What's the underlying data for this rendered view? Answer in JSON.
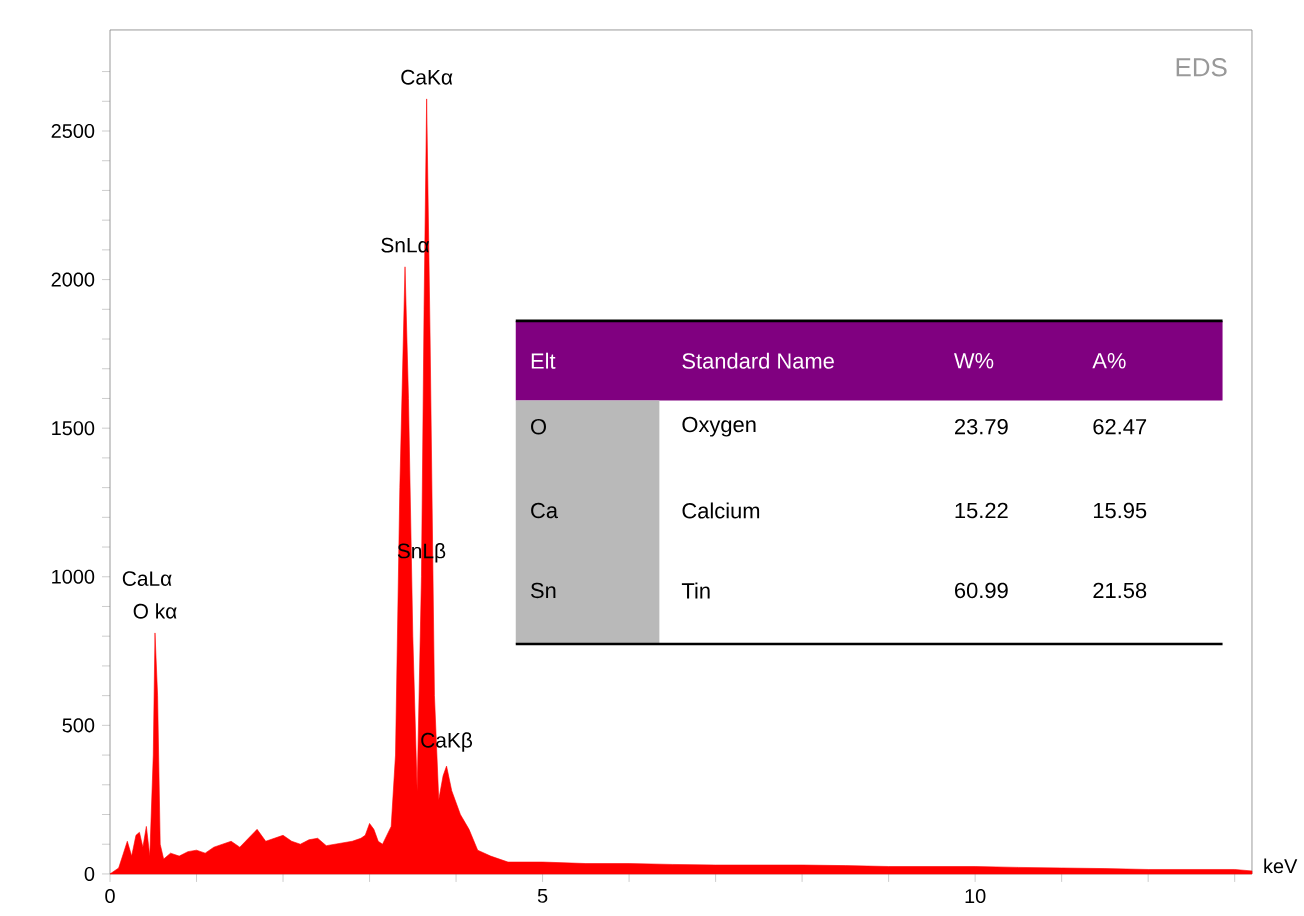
{
  "chart_data": {
    "type": "area",
    "title": "EDS",
    "xlabel": "keV",
    "color": "#ff0000",
    "x": [
      0,
      0.1,
      0.2,
      0.25,
      0.3,
      0.34,
      0.38,
      0.42,
      0.46,
      0.5,
      0.52,
      0.55,
      0.58,
      0.62,
      0.7,
      0.8,
      0.9,
      1.0,
      1.1,
      1.2,
      1.3,
      1.4,
      1.5,
      1.6,
      1.7,
      1.8,
      1.9,
      2.0,
      2.1,
      2.2,
      2.3,
      2.4,
      2.5,
      2.6,
      2.7,
      2.8,
      2.9,
      2.95,
      3.0,
      3.05,
      3.1,
      3.15,
      3.25,
      3.3,
      3.35,
      3.41,
      3.45,
      3.5,
      3.55,
      3.6,
      3.63,
      3.66,
      3.7,
      3.75,
      3.8,
      3.85,
      3.89,
      3.95,
      4.05,
      4.15,
      4.25,
      4.4,
      4.6,
      5,
      5.5,
      6,
      6.5,
      7,
      7.5,
      8,
      8.5,
      9,
      9.5,
      10,
      10.5,
      11,
      11.5,
      12,
      12.5,
      13,
      13.2
    ],
    "values": [
      0,
      20,
      110,
      60,
      130,
      140,
      90,
      160,
      60,
      400,
      811,
      600,
      100,
      50,
      70,
      60,
      75,
      80,
      70,
      90,
      100,
      110,
      90,
      120,
      150,
      110,
      120,
      130,
      110,
      100,
      115,
      120,
      95,
      100,
      105,
      110,
      120,
      130,
      170,
      150,
      110,
      100,
      160,
      400,
      1300,
      2043,
      1600,
      800,
      280,
      1000,
      1900,
      2608,
      1800,
      600,
      250,
      330,
      363,
      280,
      200,
      150,
      80,
      60,
      40,
      40,
      35,
      35,
      32,
      30,
      30,
      30,
      28,
      25,
      25,
      25,
      22,
      20,
      18,
      15,
      15,
      15,
      10
    ],
    "xlim": [
      0,
      13.2
    ],
    "ylim": [
      0,
      2840
    ],
    "xticks": [
      0,
      {
        "value": 1,
        "label": null
      },
      {
        "value": 2,
        "label": null
      },
      {
        "value": 3,
        "label": null
      },
      {
        "value": 4,
        "label": null
      },
      5,
      {
        "value": 6,
        "label": null
      },
      {
        "value": 7,
        "label": null
      },
      {
        "value": 8,
        "label": null
      },
      {
        "value": 9,
        "label": null
      },
      10,
      {
        "value": 11,
        "label": null
      },
      {
        "value": 12,
        "label": null
      },
      {
        "value": 13,
        "label": null
      }
    ],
    "yticks": [
      0,
      {
        "value": 100,
        "label": null
      },
      {
        "value": 200,
        "label": null
      },
      {
        "value": 300,
        "label": null
      },
      {
        "value": 400,
        "label": null
      },
      500,
      {
        "value": 600,
        "label": null
      },
      {
        "value": 700,
        "label": null
      },
      {
        "value": 800,
        "label": null
      },
      {
        "value": 900,
        "label": null
      },
      1000,
      {
        "value": 1100,
        "label": null
      },
      {
        "value": 1200,
        "label": null
      },
      {
        "value": 1300,
        "label": null
      },
      {
        "value": 1400,
        "label": null
      },
      1500,
      {
        "value": 1600,
        "label": null
      },
      {
        "value": 1700,
        "label": null
      },
      {
        "value": 1800,
        "label": null
      },
      {
        "value": 1900,
        "label": null
      },
      2000,
      {
        "value": 2100,
        "label": null
      },
      {
        "value": 2200,
        "label": null
      },
      {
        "value": 2300,
        "label": null
      },
      {
        "value": 2400,
        "label": null
      },
      2500,
      {
        "value": 2600,
        "label": null
      },
      {
        "value": 2700,
        "label": null
      }
    ],
    "annotations": [
      {
        "text": "CaKα",
        "x": 3.66,
        "y": 2608
      },
      {
        "text": "SnLα",
        "x": 3.41,
        "y": 2043
      },
      {
        "text": "O kα",
        "x": 0.52,
        "y": 811
      },
      "CaLα",
      {
        "text": "SnLβ",
        "x": 3.6,
        "y": 1000
      },
      {
        "text": "CaKβ",
        "x": 3.89,
        "y": 363
      },
      "Elt",
      "Standard Name",
      "W%",
      "A%",
      "O",
      "Oxygen",
      "23.79",
      "62.47",
      "Ca",
      "Calcium",
      "15.22",
      "15.95",
      "Sn",
      "Tin",
      "60.99",
      "21.58"
    ]
  }
}
